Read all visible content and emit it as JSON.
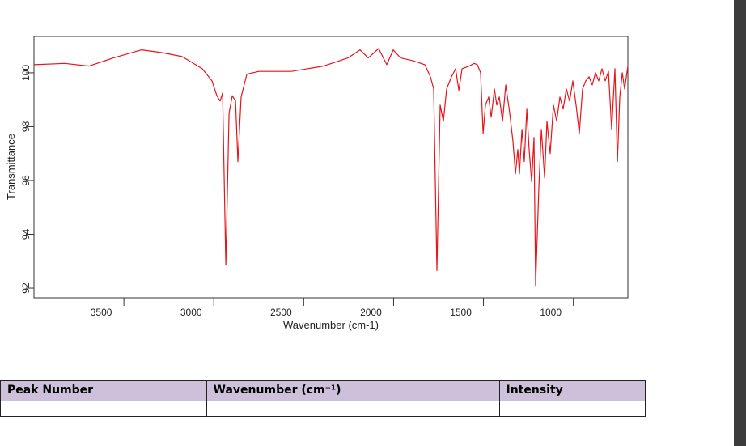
{
  "chart_data": {
    "type": "line",
    "xlabel": "Wavenumber (cm-1)",
    "ylabel": "Transmittance",
    "color": "#e8141a",
    "xlim": [
      4000,
      697
    ],
    "xticks": [
      3500,
      3000,
      2500,
      2000,
      1500,
      1000
    ],
    "ylim": [
      91.64,
      101.35
    ],
    "yticks": [
      92,
      94,
      96,
      98,
      100
    ],
    "x": [
      4000,
      3829,
      3694,
      3559,
      3401,
      3289,
      3176,
      3064,
      3010,
      2983,
      2965,
      2951,
      2933,
      2915,
      2897,
      2879,
      2866,
      2848,
      2816,
      2749,
      2569,
      2389,
      2254,
      2187,
      2141,
      2083,
      2038,
      2002,
      1961,
      1894,
      1826,
      1795,
      1777,
      1759,
      1741,
      1723,
      1705,
      1678,
      1655,
      1637,
      1619,
      1579,
      1552,
      1534,
      1516,
      1502,
      1489,
      1471,
      1457,
      1439,
      1426,
      1412,
      1394,
      1376,
      1354,
      1336,
      1322,
      1309,
      1300,
      1286,
      1273,
      1259,
      1246,
      1232,
      1219,
      1210,
      1192,
      1178,
      1160,
      1147,
      1129,
      1111,
      1093,
      1075,
      1057,
      1039,
      1021,
      1003,
      985,
      967,
      949,
      931,
      913,
      895,
      877,
      859,
      841,
      823,
      805,
      787,
      769,
      755,
      742,
      728,
      715,
      697
    ],
    "values": [
      100.3,
      100.35,
      100.25,
      100.55,
      100.85,
      100.75,
      100.6,
      100.15,
      99.7,
      99.15,
      98.95,
      99.25,
      92.85,
      98.5,
      99.15,
      98.95,
      96.7,
      99.1,
      99.95,
      100.05,
      100.05,
      100.25,
      100.55,
      100.85,
      100.55,
      100.9,
      100.3,
      100.85,
      100.55,
      100.45,
      100.3,
      99.85,
      99.4,
      92.65,
      98.8,
      98.2,
      99.4,
      99.85,
      100.15,
      99.35,
      100.15,
      100.25,
      100.35,
      100.3,
      100.0,
      97.75,
      98.8,
      99.1,
      98.35,
      99.4,
      98.8,
      99.1,
      98.2,
      99.55,
      98.5,
      97.45,
      96.25,
      97.15,
      96.25,
      97.9,
      96.7,
      98.65,
      97.15,
      95.95,
      97.6,
      92.1,
      95.75,
      97.9,
      96.1,
      98.2,
      97.0,
      98.8,
      98.2,
      99.1,
      98.65,
      99.4,
      98.95,
      99.7,
      98.8,
      97.75,
      99.4,
      99.7,
      99.85,
      99.55,
      100.0,
      99.7,
      100.15,
      99.7,
      100.05,
      97.9,
      100.15,
      96.7,
      99.1,
      100.0,
      99.4,
      100.25
    ]
  },
  "table": {
    "header": [
      "Peak Number",
      "Wavenumber (cm⁻¹)",
      "Intensity"
    ]
  }
}
